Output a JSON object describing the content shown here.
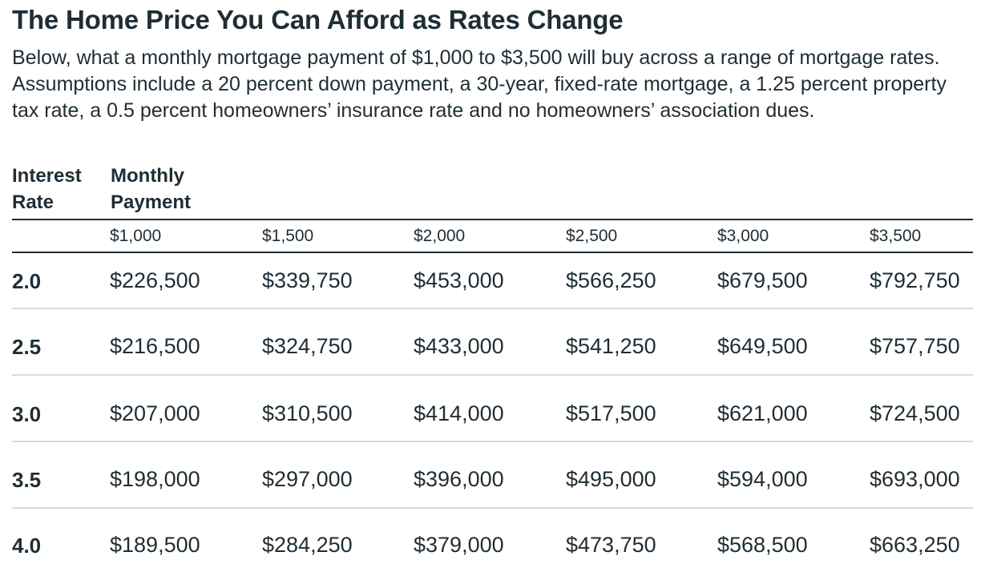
{
  "title": "The Home Price You Can Afford as Rates Change",
  "subtitle": "Below, what a monthly mortgage payment of $1,000 to $3,500 will buy across a range of mortgage rates. Assumptions include a 20 percent down payment, a 30-year, fixed-rate mortgage, a 1.25 percent property tax rate, a 0.5 percent homeowners’ insurance rate and no homeowners’ association dues.",
  "headers": {
    "rate_line1": "Interest",
    "rate_line2": "Rate",
    "payment_line1": "Monthly",
    "payment_line2": "Payment"
  },
  "chart_data": {
    "type": "table",
    "title": "The Home Price You Can Afford as Rates Change",
    "columns": [
      "$1,000",
      "$1,500",
      "$2,000",
      "$2,500",
      "$3,000",
      "$3,500"
    ],
    "rows": [
      {
        "rate": "2.0",
        "values": [
          "$226,500",
          "$339,750",
          "$453,000",
          "$566,250",
          "$679,500",
          "$792,750"
        ]
      },
      {
        "rate": "2.5",
        "values": [
          "$216,500",
          "$324,750",
          "$433,000",
          "$541,250",
          "$649,500",
          "$757,750"
        ]
      },
      {
        "rate": "3.0",
        "values": [
          "$207,000",
          "$310,500",
          "$414,000",
          "$517,500",
          "$621,000",
          "$724,500"
        ]
      },
      {
        "rate": "3.5",
        "values": [
          "$198,000",
          "$297,000",
          "$396,000",
          "$495,000",
          "$594,000",
          "$693,000"
        ]
      },
      {
        "rate": "4.0",
        "values": [
          "$189,500",
          "$284,250",
          "$379,000",
          "$473,750",
          "$568,500",
          "$663,250"
        ]
      }
    ]
  }
}
